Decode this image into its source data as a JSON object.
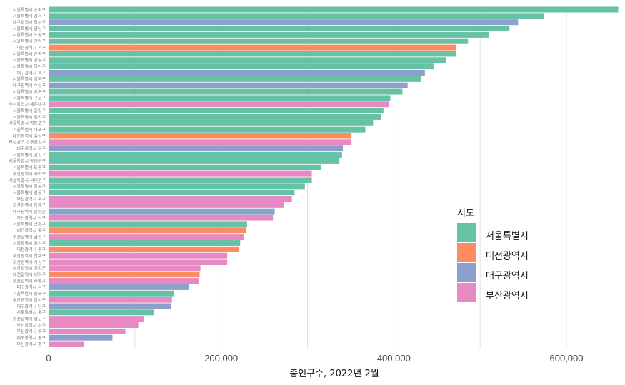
{
  "chart_data": {
    "type": "bar",
    "orientation": "horizontal",
    "title": "",
    "xlabel": "총인구수, 2022년 2월",
    "ylabel": "",
    "xlim": [
      0,
      660000
    ],
    "xticks": [
      0,
      200000,
      400000,
      600000
    ],
    "xtick_labels": [
      "0",
      "200,000",
      "400,000",
      "600,000"
    ],
    "grid": true,
    "legend": {
      "title": "시도",
      "placement": "right",
      "entries": [
        {
          "name": "서울특별시",
          "color": "#66c2a5"
        },
        {
          "name": "대전광역시",
          "color": "#fc8d62"
        },
        {
          "name": "대구광역시",
          "color": "#8da0cb"
        },
        {
          "name": "부산광역시",
          "color": "#e78ac3"
        }
      ]
    },
    "bars": [
      {
        "label": "서울특별시 송파구",
        "sido": "서울특별시",
        "value": 660000
      },
      {
        "label": "서울특별시 강서구",
        "sido": "서울특별시",
        "value": 574000
      },
      {
        "label": "대구광역시 달서구",
        "sido": "대구광역시",
        "value": 544000
      },
      {
        "label": "서울특별시 강남구",
        "sido": "서울특별시",
        "value": 534000
      },
      {
        "label": "서울특별시 노원구",
        "sido": "서울특별시",
        "value": 510000
      },
      {
        "label": "서울특별시 관악구",
        "sido": "서울특별시",
        "value": 486000
      },
      {
        "label": "대전광역시 서구",
        "sido": "대전광역시",
        "value": 472000
      },
      {
        "label": "서울특별시 은평구",
        "sido": "서울특별시",
        "value": 472000
      },
      {
        "label": "서울특별시 강동구",
        "sido": "서울특별시",
        "value": 461000
      },
      {
        "label": "서울특별시 양천구",
        "sido": "서울특별시",
        "value": 446000
      },
      {
        "label": "대구광역시 북구",
        "sido": "대구광역시",
        "value": 436000
      },
      {
        "label": "서울특별시 성북구",
        "sido": "서울특별시",
        "value": 432000
      },
      {
        "label": "대구광역시 수성구",
        "sido": "대구광역시",
        "value": 416000
      },
      {
        "label": "서울특별시 서초구",
        "sido": "서울특별시",
        "value": 410000
      },
      {
        "label": "서울특별시 구로구",
        "sido": "서울특별시",
        "value": 396000
      },
      {
        "label": "부산광역시 해운대구",
        "sido": "부산광역시",
        "value": 394000
      },
      {
        "label": "서울특별시 중랑구",
        "sido": "서울특별시",
        "value": 388000
      },
      {
        "label": "서울특별시 동작구",
        "sido": "서울특별시",
        "value": 385000
      },
      {
        "label": "서울특별시 영등포구",
        "sido": "서울특별시",
        "value": 376000
      },
      {
        "label": "서울특별시 마포구",
        "sido": "서울특별시",
        "value": 367000
      },
      {
        "label": "대전광역시 유성구",
        "sido": "대전광역시",
        "value": 351000
      },
      {
        "label": "부산광역시 부산진구",
        "sido": "부산광역시",
        "value": 351000
      },
      {
        "label": "대구광역시 동구",
        "sido": "대구광역시",
        "value": 341000
      },
      {
        "label": "서울특별시 광진구",
        "sido": "서울특별시",
        "value": 340000
      },
      {
        "label": "서울특별시 동대문구",
        "sido": "서울특별시",
        "value": 337000
      },
      {
        "label": "서울특별시 도봉구",
        "sido": "서울특별시",
        "value": 316000
      },
      {
        "label": "부산광역시 사하구",
        "sido": "부산광역시",
        "value": 305000
      },
      {
        "label": "서울특별시 서대문구",
        "sido": "서울특별시",
        "value": 305000
      },
      {
        "label": "서울특별시 강북구",
        "sido": "서울특별시",
        "value": 297000
      },
      {
        "label": "서울특별시 성동구",
        "sido": "서울특별시",
        "value": 285000
      },
      {
        "label": "부산광역시 북구",
        "sido": "부산광역시",
        "value": 282000
      },
      {
        "label": "부산광역시 동래구",
        "sido": "부산광역시",
        "value": 273000
      },
      {
        "label": "대구광역시 달성군",
        "sido": "대구광역시",
        "value": 262000
      },
      {
        "label": "부산광역시 남구",
        "sido": "부산광역시",
        "value": 260000
      },
      {
        "label": "서울특별시 금천구",
        "sido": "서울특별시",
        "value": 230000
      },
      {
        "label": "대전광역시 중구",
        "sido": "대전광역시",
        "value": 229000
      },
      {
        "label": "부산광역시 금정구",
        "sido": "부산광역시",
        "value": 226000
      },
      {
        "label": "서울특별시 용산구",
        "sido": "서울특별시",
        "value": 222000
      },
      {
        "label": "대전광역시 동구",
        "sido": "대전광역시",
        "value": 221000
      },
      {
        "label": "부산광역시 연제구",
        "sido": "부산광역시",
        "value": 207000
      },
      {
        "label": "부산광역시 사상구",
        "sido": "부산광역시",
        "value": 207000
      },
      {
        "label": "부산광역시 기장군",
        "sido": "부산광역시",
        "value": 176000
      },
      {
        "label": "대전광역시 대덕구",
        "sido": "대전광역시",
        "value": 175000
      },
      {
        "label": "부산광역시 수영구",
        "sido": "부산광역시",
        "value": 174000
      },
      {
        "label": "대구광역시 서구",
        "sido": "대구광역시",
        "value": 163000
      },
      {
        "label": "서울특별시 종로구",
        "sido": "서울특별시",
        "value": 145000
      },
      {
        "label": "부산광역시 강서구",
        "sido": "부산광역시",
        "value": 143000
      },
      {
        "label": "대구광역시 남구",
        "sido": "대구광역시",
        "value": 142000
      },
      {
        "label": "서울특별시 중구",
        "sido": "서울특별시",
        "value": 122000
      },
      {
        "label": "부산광역시 영도구",
        "sido": "부산광역시",
        "value": 110000
      },
      {
        "label": "부산광역시 서구",
        "sido": "부산광역시",
        "value": 104000
      },
      {
        "label": "부산광역시 동구",
        "sido": "부산광역시",
        "value": 89000
      },
      {
        "label": "대구광역시 중구",
        "sido": "대구광역시",
        "value": 74000
      },
      {
        "label": "부산광역시 중구",
        "sido": "부산광역시",
        "value": 41000
      }
    ]
  }
}
